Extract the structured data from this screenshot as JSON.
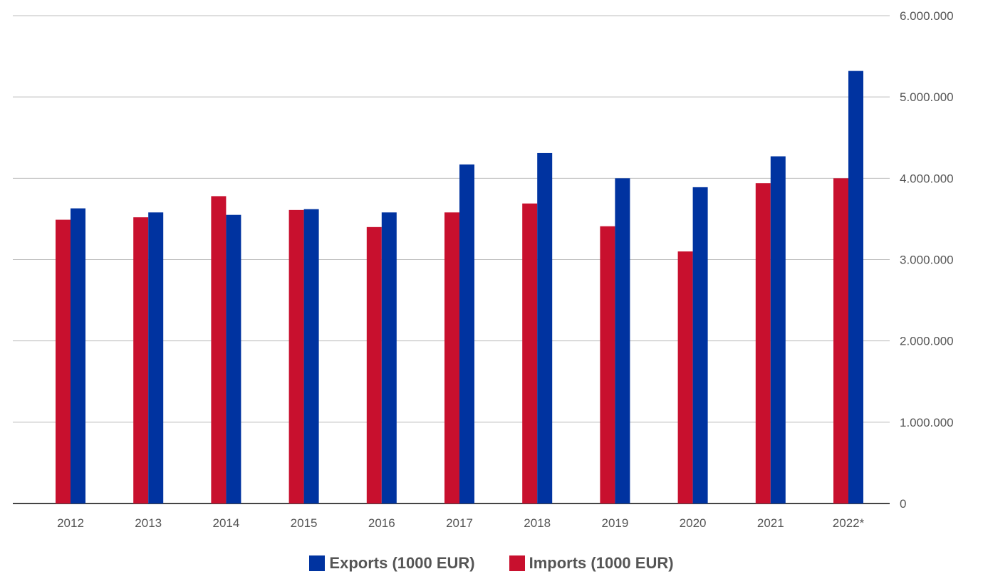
{
  "chart_data": {
    "type": "bar",
    "categories": [
      "2012",
      "2013",
      "2014",
      "2015",
      "2016",
      "2017",
      "2018",
      "2019",
      "2020",
      "2021",
      "2022*"
    ],
    "series": [
      {
        "name": "Imports (1000 EUR)",
        "color": "#c8102e",
        "values": [
          3490000,
          3520000,
          3780000,
          3610000,
          3400000,
          3580000,
          3690000,
          3410000,
          3100000,
          3940000,
          4000000
        ]
      },
      {
        "name": "Exports (1000 EUR)",
        "color": "#0033a0",
        "values": [
          3630000,
          3580000,
          3550000,
          3620000,
          3580000,
          4170000,
          4310000,
          4000000,
          3890000,
          4270000,
          5320000
        ]
      }
    ],
    "yaxis": {
      "position": "right",
      "ticks": [
        0,
        1000000,
        2000000,
        3000000,
        4000000,
        5000000,
        6000000
      ],
      "tick_labels": [
        "0",
        "1.000.000",
        "2.000.000",
        "3.000.000",
        "4.000.000",
        "5.000.000",
        "6.000.000"
      ]
    },
    "ylim": [
      0,
      6000000
    ],
    "grid": true,
    "legend": {
      "position": "bottom",
      "entries": [
        {
          "label": "Exports (1000 EUR)",
          "color": "#0033a0"
        },
        {
          "label": "Imports (1000 EUR)",
          "color": "#c8102e"
        }
      ]
    }
  }
}
